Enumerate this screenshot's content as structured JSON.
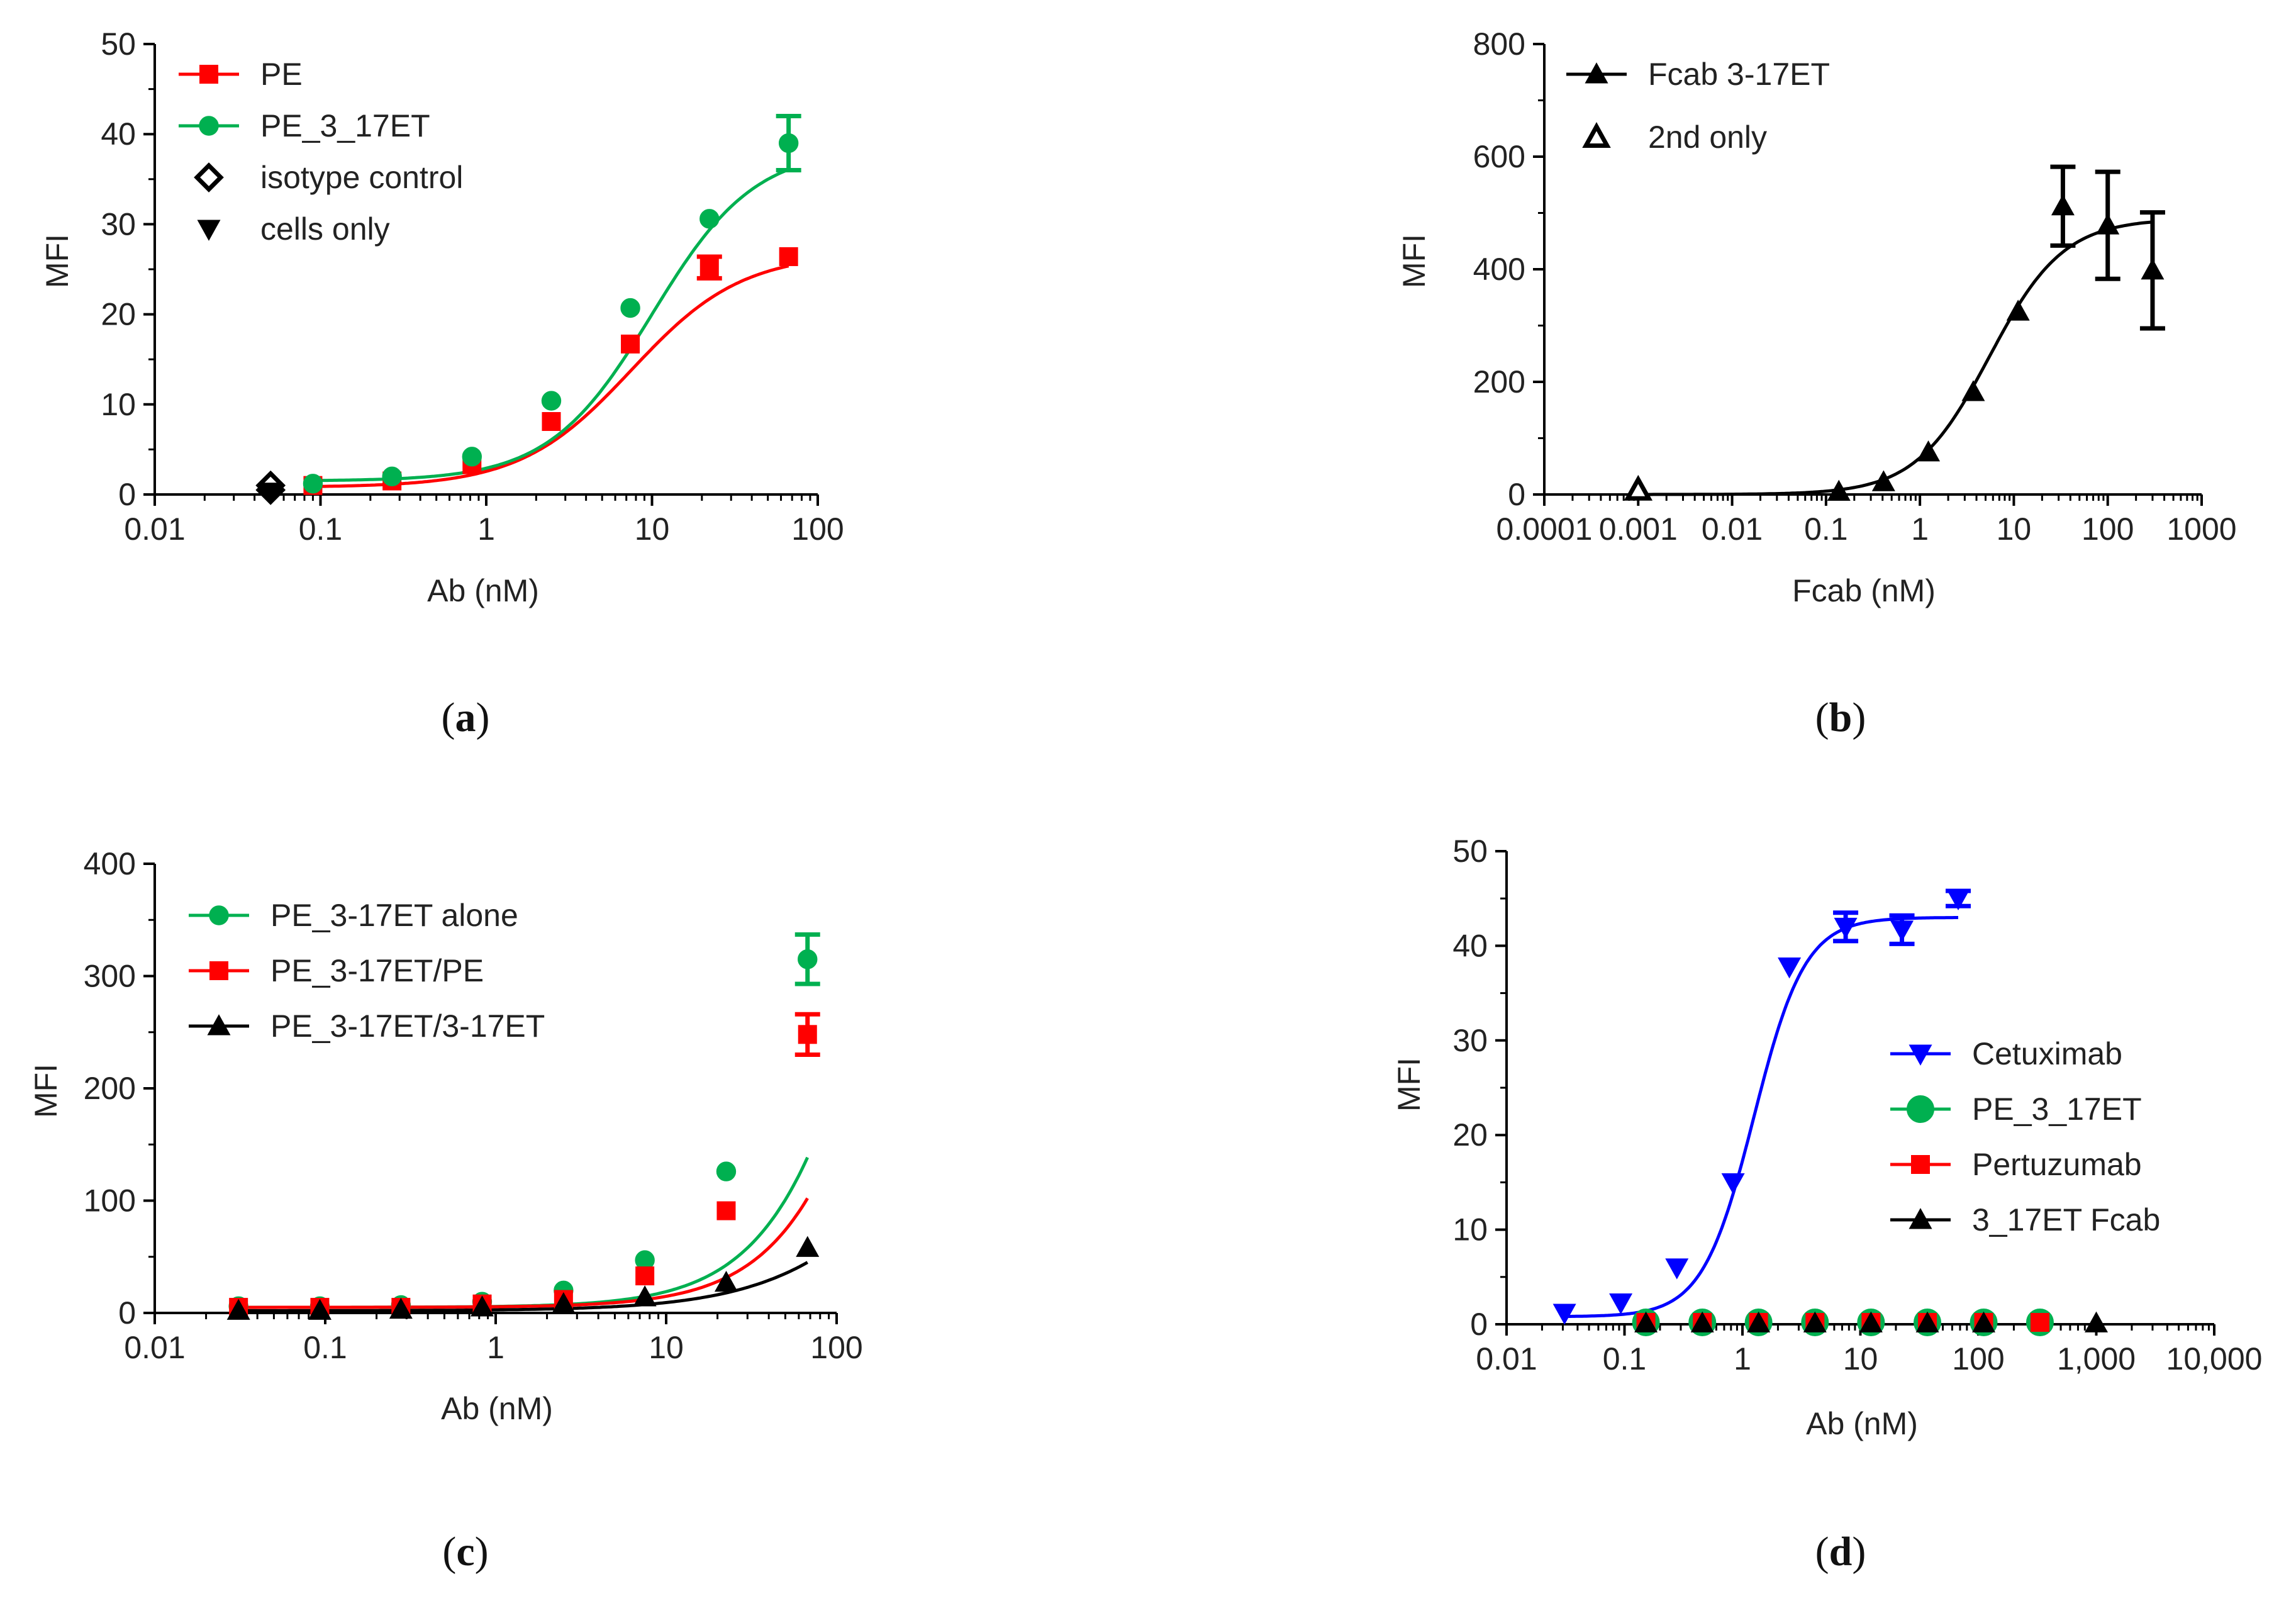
{
  "chart_data": [
    {
      "panel": "a",
      "type": "line",
      "caption_open": "(",
      "caption_letter": "a",
      "caption_close": ")",
      "xlabel": "Ab (nM)",
      "ylabel": "MFI",
      "xscale": "log",
      "xlim": [
        0.01,
        100
      ],
      "ylim": [
        0,
        50
      ],
      "xticks": [
        0.01,
        0.1,
        1,
        10,
        100
      ],
      "xtick_labels": [
        "0.01",
        "0.1",
        "1",
        "10",
        "100"
      ],
      "yticks": [
        0,
        10,
        20,
        30,
        40,
        50
      ],
      "ytick_labels": [
        "0",
        "10",
        "20",
        "30",
        "40",
        "50"
      ],
      "legend": "top-left",
      "series": [
        {
          "name": "PE",
          "color": "#ff0000",
          "marker": "square",
          "fill": true,
          "x": [
            0.09,
            0.27,
            0.82,
            2.47,
            7.4,
            22.2,
            66.7
          ],
          "y": [
            1.0,
            1.5,
            3.3,
            8.1,
            16.7,
            25.2,
            26.4
          ],
          "err": [
            0,
            0,
            0,
            0,
            0,
            1.2,
            0
          ],
          "fit": {
            "bottom": 0.8,
            "top": 26.8,
            "ec50": 7.5,
            "hill": 1.3,
            "from": 0.09,
            "to": 66.7
          }
        },
        {
          "name": "PE_3_17ET",
          "color": "#00b050",
          "marker": "circle",
          "fill": true,
          "x": [
            0.09,
            0.27,
            0.82,
            2.47,
            7.4,
            22.2,
            66.7
          ],
          "y": [
            1.2,
            2.0,
            4.2,
            10.4,
            20.7,
            30.6,
            39.0
          ],
          "err": [
            0,
            0,
            0,
            0,
            0,
            0,
            3.0
          ],
          "fit": {
            "bottom": 1.5,
            "top": 38.5,
            "ec50": 10.0,
            "hill": 1.4,
            "from": 0.09,
            "to": 66.7
          }
        },
        {
          "name": "isotype control",
          "color": "#000000",
          "marker": "diamond",
          "fill": false,
          "x": [
            0.05,
            0.05
          ],
          "y": [
            0.5,
            1.0
          ],
          "err": [
            0,
            0
          ]
        },
        {
          "name": "cells only",
          "color": "#000000",
          "marker": "triangle-down",
          "fill": true,
          "x": [
            0.05
          ],
          "y": [
            0.3
          ],
          "err": [
            0
          ]
        }
      ]
    },
    {
      "panel": "b",
      "type": "line",
      "caption_open": "(",
      "caption_letter": "b",
      "caption_close": ")",
      "xlabel": "Fcab (nM)",
      "ylabel": "MFI",
      "xscale": "log",
      "xlim": [
        0.0001,
        1000
      ],
      "ylim": [
        0,
        800
      ],
      "xticks": [
        0.0001,
        0.001,
        0.01,
        0.1,
        1,
        10,
        100,
        1000
      ],
      "xtick_labels": [
        "0.0001",
        "0.001",
        "0.01",
        "0.1",
        "1",
        "10",
        "100",
        "1000"
      ],
      "yticks": [
        0,
        200,
        400,
        600,
        800
      ],
      "ytick_labels": [
        "0",
        "200",
        "400",
        "600",
        "800"
      ],
      "legend": "top-left",
      "series": [
        {
          "name": "Fcab 3-17ET",
          "color": "#000000",
          "marker": "triangle",
          "fill": true,
          "x": [
            0.137,
            0.41,
            1.23,
            3.7,
            11.1,
            33.3,
            100,
            300
          ],
          "y": [
            5,
            22,
            75,
            182,
            325,
            512,
            478,
            398
          ],
          "err": [
            0,
            0,
            0,
            0,
            0,
            70,
            95,
            103
          ],
          "fit": {
            "bottom": 0,
            "top": 490,
            "ec50": 5.5,
            "hill": 1.1,
            "from": 0.001,
            "to": 300
          }
        },
        {
          "name": "2nd only",
          "color": "#000000",
          "marker": "triangle",
          "fill": false,
          "x": [
            0.001
          ],
          "y": [
            8
          ],
          "err": [
            0
          ]
        }
      ]
    },
    {
      "panel": "c",
      "type": "line",
      "caption_open": "(",
      "caption_letter": "c",
      "caption_close": ")",
      "xlabel": "Ab (nM)",
      "ylabel": "MFI",
      "xscale": "log",
      "xlim": [
        0.01,
        100
      ],
      "ylim": [
        0,
        400
      ],
      "xticks": [
        0.01,
        0.1,
        1,
        10,
        100
      ],
      "xtick_labels": [
        "0.01",
        "0.1",
        "1",
        "10",
        "100"
      ],
      "yticks": [
        0,
        100,
        200,
        300,
        400
      ],
      "ytick_labels": [
        "0",
        "100",
        "200",
        "300",
        "400"
      ],
      "legend": "top-left",
      "series": [
        {
          "name": "PE_3-17ET alone",
          "color": "#00b050",
          "marker": "circle",
          "fill": true,
          "x": [
            0.031,
            0.093,
            0.278,
            0.833,
            2.5,
            7.5,
            22.5,
            67.5
          ],
          "y": [
            6,
            6,
            7,
            10,
            20,
            47,
            126,
            315
          ],
          "err": [
            0,
            0,
            0,
            0,
            0,
            0,
            0,
            22
          ],
          "fit": {
            "bottom": 5,
            "top": 1000,
            "ec50": 300,
            "hill": 1.25,
            "from": 0.031,
            "to": 67.5
          }
        },
        {
          "name": "PE_3-17ET/PE",
          "color": "#ff0000",
          "marker": "square",
          "fill": true,
          "x": [
            0.031,
            0.093,
            0.278,
            0.833,
            2.5,
            7.5,
            22.5,
            67.5
          ],
          "y": [
            5,
            5,
            5,
            8,
            12,
            33,
            91,
            248
          ],
          "err": [
            0,
            0,
            0,
            0,
            0,
            0,
            0,
            18
          ],
          "fit": {
            "bottom": 5,
            "top": 1000,
            "ec50": 400,
            "hill": 1.25,
            "from": 0.031,
            "to": 67.5
          }
        },
        {
          "name": "PE_3-17ET/3-17ET",
          "color": "#000000",
          "marker": "triangle",
          "fill": true,
          "x": [
            0.031,
            0.093,
            0.278,
            0.833,
            2.5,
            7.5,
            22.5,
            67.5
          ],
          "y": [
            2,
            2,
            3,
            5,
            8,
            14,
            27,
            58
          ],
          "err": [
            0,
            0,
            0,
            0,
            0,
            0,
            0,
            0
          ],
          "fit": {
            "bottom": 2,
            "top": 300,
            "ec50": 400,
            "hill": 1.0,
            "from": 0.031,
            "to": 67.5
          }
        }
      ]
    },
    {
      "panel": "d",
      "type": "line",
      "caption_open": "(",
      "caption_letter": "d",
      "caption_close": ")",
      "xlabel": "Ab (nM)",
      "ylabel": "MFI",
      "xscale": "log",
      "xlim": [
        0.01,
        10000
      ],
      "ylim": [
        0,
        50
      ],
      "xticks": [
        0.01,
        0.1,
        1,
        10,
        100,
        1000,
        10000
      ],
      "xtick_labels": [
        "0.01",
        "0.1",
        "1",
        "10",
        "100",
        "1,000",
        "10,000"
      ],
      "yticks": [
        0,
        10,
        20,
        30,
        40,
        50
      ],
      "ytick_labels": [
        "0",
        "10",
        "20",
        "30",
        "40",
        "50"
      ],
      "legend": "right",
      "series": [
        {
          "name": "Cetuximab",
          "color": "#0000ff",
          "marker": "triangle-down",
          "fill": true,
          "x": [
            0.031,
            0.093,
            0.278,
            0.833,
            2.5,
            7.5,
            22.5,
            67.5
          ],
          "y": [
            1.2,
            2.3,
            6.0,
            15.0,
            37.8,
            42.0,
            41.7,
            45.0
          ],
          "err": [
            0,
            0,
            0,
            0,
            0,
            1.5,
            1.5,
            0.8
          ],
          "fit": {
            "bottom": 0.8,
            "top": 43.0,
            "ec50": 1.25,
            "hill": 2.0,
            "from": 0.031,
            "to": 67.5
          }
        },
        {
          "name": "PE_3_17ET",
          "color": "#00b050",
          "marker": "circle",
          "fill": true,
          "x": [
            0.152,
            0.457,
            1.37,
            4.12,
            12.3,
            37.0,
            111,
            333
          ],
          "y": [
            0.2,
            0.2,
            0.2,
            0.2,
            0.2,
            0.2,
            0.2,
            0.2
          ],
          "err": [
            0,
            0,
            0,
            0,
            0,
            0,
            0,
            0
          ]
        },
        {
          "name": "Pertuzumab",
          "color": "#ff0000",
          "marker": "square",
          "fill": true,
          "x": [
            0.152,
            0.457,
            1.37,
            4.12,
            12.3,
            37.0,
            111,
            333
          ],
          "y": [
            0.2,
            0.2,
            0.2,
            0.2,
            0.2,
            0.2,
            0.2,
            0.2
          ],
          "err": [
            0,
            0,
            0,
            0,
            0,
            0,
            0,
            0
          ]
        },
        {
          "name": "3_17ET Fcab",
          "color": "#000000",
          "marker": "triangle",
          "fill": true,
          "x": [
            0.152,
            0.457,
            1.37,
            4.12,
            12.3,
            37.0,
            111,
            1000
          ],
          "y": [
            0.1,
            0.1,
            0.1,
            0.1,
            0.1,
            0.1,
            0.1,
            0.1
          ],
          "err": [
            0,
            0,
            0,
            0,
            0,
            0,
            0,
            0
          ]
        }
      ]
    }
  ]
}
